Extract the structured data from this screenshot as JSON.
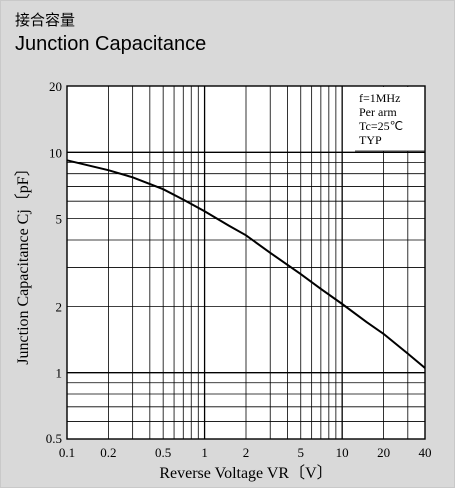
{
  "header": {
    "title_jp": "接合容量",
    "title_en": "Junction Capacitance"
  },
  "colors": {
    "panel_background": "#d9d9d9",
    "plot_background": "#ffffff",
    "grid": "#000000",
    "curve": "#000000"
  },
  "chart_data": {
    "type": "line",
    "title": "Junction Capacitance",
    "xlabel": "Reverse Voltage VR〔V〕",
    "ylabel": "Junction Capacitance Cj〔pF〕",
    "xscale": "log",
    "yscale": "log",
    "xlim": [
      0.1,
      40
    ],
    "ylim": [
      0.5,
      20
    ],
    "grid": true,
    "x_ticks": [
      0.1,
      0.2,
      0.5,
      1,
      2,
      5,
      10,
      20,
      40
    ],
    "x_tick_labels": [
      "0.1",
      "0.2",
      "0.5",
      "1",
      "2",
      "5",
      "10",
      "20",
      "40"
    ],
    "y_ticks": [
      0.5,
      1,
      2,
      5,
      10,
      20
    ],
    "y_tick_labels": [
      "0.5",
      "1",
      "2",
      "5",
      "10",
      "20"
    ],
    "legend_position": "top-right",
    "annotation_lines": [
      "f=1MHz",
      "Per arm",
      "Tc=25℃",
      "TYP"
    ],
    "series": [
      {
        "x": [
          0.1,
          0.2,
          0.3,
          0.5,
          0.7,
          1,
          1.5,
          2,
          3,
          5,
          7,
          10,
          15,
          20,
          30,
          40
        ],
        "y": [
          9.2,
          8.3,
          7.7,
          6.8,
          6.1,
          5.4,
          4.65,
          4.2,
          3.5,
          2.8,
          2.4,
          2.05,
          1.7,
          1.5,
          1.22,
          1.05
        ]
      }
    ]
  }
}
